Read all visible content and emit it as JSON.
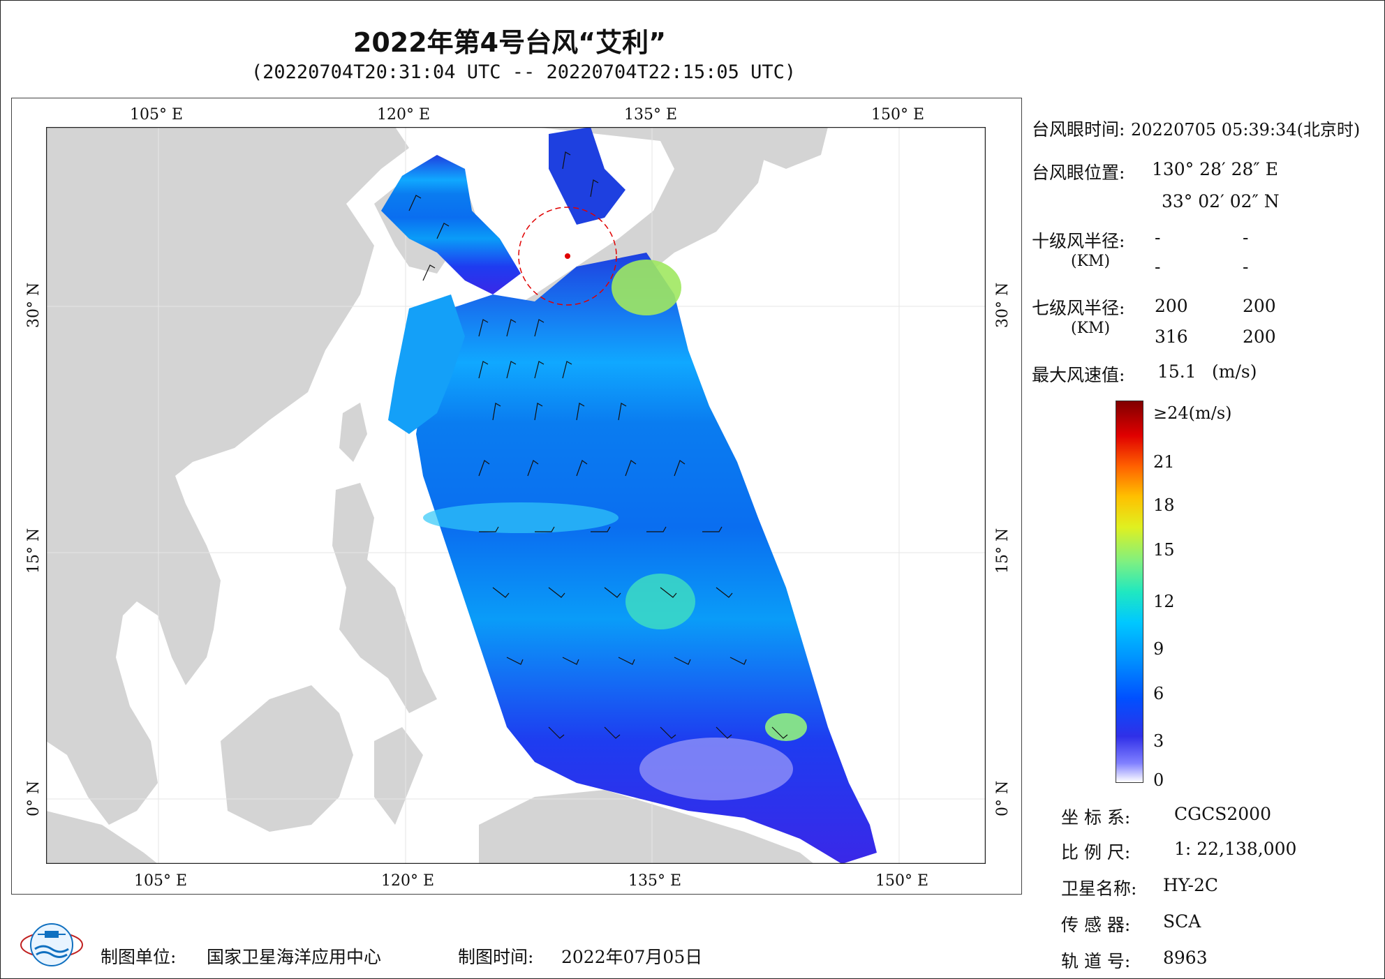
{
  "title": "2022年第4号台风“艾利”",
  "subtitle": "(20220704T20:31:04 UTC -- 20220704T22:15:05 UTC)",
  "map": {
    "lon_labels": [
      "105° E",
      "120° E",
      "135° E",
      "150° E"
    ],
    "lat_labels": [
      "30° N",
      "15° N",
      "0° N"
    ]
  },
  "info": {
    "eye_time_label": "台风眼时间:",
    "eye_time_value": "20220705 05:39:34(北京时)",
    "eye_pos_label": "台风眼位置:",
    "eye_lon": "130° 28′ 28″ E",
    "eye_lat": "33° 02′ 02″ N",
    "r10_label": "十级风半径:",
    "r_unit": "(KM)",
    "r10_values": [
      "-",
      "-",
      "-",
      "-"
    ],
    "r7_label": "七级风半径:",
    "r7_values": [
      "200",
      "200",
      "316",
      "200"
    ],
    "max_wind_label": "最大风速值:",
    "max_wind_value": "15.1",
    "max_wind_unit": "(m/s)"
  },
  "colorbar": {
    "labels": [
      "≥24(m/s)",
      "21",
      "18",
      "15",
      "12",
      "9",
      "6",
      "3",
      "0"
    ]
  },
  "meta": {
    "crs_label": "坐 标 系:",
    "crs_value": "CGCS2000",
    "scale_label": "比 例 尺:",
    "scale_value": "1: 22,138,000",
    "sat_label": "卫星名称:",
    "sat_value": "HY-2C",
    "sensor_label": "传 感 器:",
    "sensor_value": "SCA",
    "orbit_label": "轨 道 号:",
    "orbit_value": "8963"
  },
  "footer": {
    "unit_label": "制图单位:",
    "unit_value": "国家卫星海洋应用中心",
    "time_label": "制图时间:",
    "time_value": "2022年07月05日"
  }
}
